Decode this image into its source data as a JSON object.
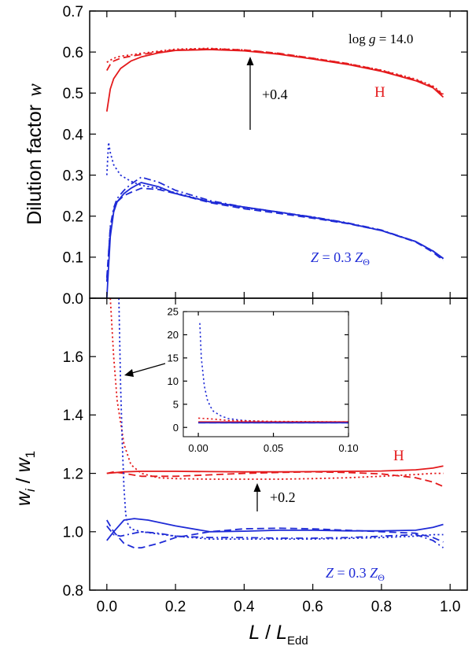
{
  "colors": {
    "red": "#e41a1c",
    "blue": "#1f2bd6",
    "axis": "#000000"
  },
  "chart_data": [
    {
      "type": "line",
      "panel": "top",
      "ylabel": "Dilution factor",
      "ylabel_symbol": "w",
      "xlabel": "",
      "xlim": [
        -0.05,
        1.05
      ],
      "ylim": [
        0.0,
        0.7
      ],
      "xticks": [
        "0.0",
        "0.2",
        "0.4",
        "0.6",
        "0.8",
        "1.0"
      ],
      "yticks": [
        "0.0",
        "0.1",
        "0.2",
        "0.3",
        "0.4",
        "0.5",
        "0.6",
        "0.7"
      ],
      "annotations": {
        "logg": {
          "prefix": "log",
          "symbol": "g",
          "text": "= 14.0"
        },
        "offset": "+0.4",
        "h_label": "H",
        "z_label": {
          "symbol": "Z",
          "text": "= 0.3",
          "sub_symbol": "Z",
          "sub": "Θ"
        }
      },
      "series": [
        {
          "name": "H solid",
          "color": "red",
          "style": "solid",
          "x": [
            0.0,
            0.01,
            0.02,
            0.04,
            0.07,
            0.1,
            0.15,
            0.2,
            0.3,
            0.4,
            0.5,
            0.6,
            0.7,
            0.8,
            0.9,
            0.95,
            0.98
          ],
          "y": [
            0.455,
            0.51,
            0.535,
            0.56,
            0.578,
            0.588,
            0.598,
            0.604,
            0.606,
            0.603,
            0.595,
            0.583,
            0.57,
            0.553,
            0.53,
            0.513,
            0.49
          ]
        },
        {
          "name": "H dashed",
          "color": "red",
          "style": "dashed",
          "x": [
            0.0,
            0.01,
            0.02,
            0.04,
            0.07,
            0.1,
            0.15,
            0.2,
            0.3,
            0.4,
            0.5,
            0.6,
            0.7,
            0.8,
            0.9,
            0.95,
            0.98
          ],
          "y": [
            0.555,
            0.57,
            0.578,
            0.585,
            0.59,
            0.594,
            0.6,
            0.605,
            0.608,
            0.605,
            0.597,
            0.585,
            0.572,
            0.555,
            0.532,
            0.515,
            0.495
          ]
        },
        {
          "name": "H dotted",
          "color": "red",
          "style": "dotted",
          "x": [
            0.0,
            0.01,
            0.02,
            0.04,
            0.07,
            0.1,
            0.15,
            0.2,
            0.3,
            0.4,
            0.5,
            0.6,
            0.7,
            0.8,
            0.9,
            0.95,
            0.98
          ],
          "y": [
            0.575,
            0.58,
            0.585,
            0.59,
            0.593,
            0.597,
            0.602,
            0.607,
            0.609,
            0.605,
            0.596,
            0.585,
            0.572,
            0.556,
            0.534,
            0.517,
            0.497
          ]
        },
        {
          "name": "Z solid",
          "color": "blue",
          "style": "solid",
          "x": [
            0.0,
            0.01,
            0.02,
            0.03,
            0.05,
            0.07,
            0.1,
            0.15,
            0.2,
            0.3,
            0.4,
            0.5,
            0.6,
            0.7,
            0.8,
            0.9,
            0.95,
            0.98
          ],
          "y": [
            0.0,
            0.15,
            0.21,
            0.235,
            0.255,
            0.268,
            0.282,
            0.272,
            0.255,
            0.235,
            0.222,
            0.21,
            0.197,
            0.183,
            0.165,
            0.138,
            0.115,
            0.097
          ]
        },
        {
          "name": "Z dashed",
          "color": "blue",
          "style": "dashed",
          "x": [
            0.0,
            0.01,
            0.02,
            0.03,
            0.05,
            0.07,
            0.1,
            0.15,
            0.2,
            0.3,
            0.4,
            0.5,
            0.6,
            0.7,
            0.8,
            0.9,
            0.95,
            0.98
          ],
          "y": [
            0.05,
            0.17,
            0.215,
            0.235,
            0.25,
            0.258,
            0.268,
            0.265,
            0.255,
            0.233,
            0.218,
            0.207,
            0.195,
            0.182,
            0.165,
            0.137,
            0.112,
            0.092
          ]
        },
        {
          "name": "Z dash-dot",
          "color": "blue",
          "style": "dashdot",
          "x": [
            0.0,
            0.01,
            0.02,
            0.03,
            0.05,
            0.07,
            0.1,
            0.15,
            0.2,
            0.3,
            0.4,
            0.5,
            0.6,
            0.7,
            0.8,
            0.9,
            0.95,
            0.98
          ],
          "y": [
            0.04,
            0.175,
            0.22,
            0.243,
            0.263,
            0.278,
            0.295,
            0.283,
            0.263,
            0.238,
            0.222,
            0.21,
            0.198,
            0.184,
            0.166,
            0.138,
            0.115,
            0.095
          ]
        },
        {
          "name": "Z dotted",
          "color": "blue",
          "style": "dotted",
          "x": [
            0.0,
            0.005,
            0.01,
            0.02,
            0.04,
            0.07,
            0.1,
            0.15,
            0.2,
            0.3,
            0.4,
            0.5,
            0.6,
            0.7,
            0.8,
            0.9,
            0.95,
            0.98
          ],
          "y": [
            0.3,
            0.38,
            0.355,
            0.325,
            0.3,
            0.285,
            0.275,
            0.268,
            0.257,
            0.235,
            0.22,
            0.21,
            0.198,
            0.183,
            0.165,
            0.138,
            0.115,
            0.096
          ]
        }
      ]
    },
    {
      "type": "line",
      "panel": "bottom",
      "ylabel": "w_i / w_1",
      "ylabel_parts": {
        "num": "w",
        "num_sub": "i",
        "sep": " / ",
        "den": "w",
        "den_sub": "1"
      },
      "xlabel": "L / L_Edd",
      "xlabel_parts": {
        "num": "L",
        "sep": " / ",
        "den": "L",
        "den_sub": "Edd"
      },
      "xlim": [
        -0.05,
        1.05
      ],
      "ylim": [
        0.8,
        1.8
      ],
      "xticks": [
        "0.0",
        "0.2",
        "0.4",
        "0.6",
        "0.8",
        "1.0"
      ],
      "yticks": [
        "0.8",
        "1.0",
        "1.2",
        "1.4",
        "1.6"
      ],
      "annotations": {
        "offset": "+0.2",
        "h_label": "H",
        "z_label": {
          "symbol": "Z",
          "text": "= 0.3",
          "sub_symbol": "Z",
          "sub": "Θ"
        }
      },
      "series": [
        {
          "name": "H solid",
          "color": "red",
          "style": "solid",
          "x": [
            0.0,
            0.05,
            0.1,
            0.2,
            0.3,
            0.4,
            0.5,
            0.6,
            0.7,
            0.8,
            0.9,
            0.95,
            0.98
          ],
          "y": [
            1.2,
            1.205,
            1.207,
            1.207,
            1.206,
            1.205,
            1.205,
            1.206,
            1.207,
            1.208,
            1.212,
            1.218,
            1.225
          ]
        },
        {
          "name": "H dashed",
          "color": "red",
          "style": "dashed",
          "x": [
            0.0,
            0.02,
            0.05,
            0.1,
            0.2,
            0.3,
            0.4,
            0.5,
            0.6,
            0.7,
            0.8,
            0.9,
            0.95,
            0.98
          ],
          "y": [
            1.2,
            1.205,
            1.2,
            1.19,
            1.19,
            1.195,
            1.2,
            1.203,
            1.205,
            1.203,
            1.198,
            1.185,
            1.17,
            1.155
          ]
        },
        {
          "name": "H dotted",
          "color": "red",
          "style": "dotted",
          "x": [
            0.01,
            0.02,
            0.03,
            0.05,
            0.07,
            0.1,
            0.15,
            0.2,
            0.3,
            0.4,
            0.5,
            0.6,
            0.7,
            0.8,
            0.9,
            0.95,
            0.98
          ],
          "y": [
            1.8,
            1.6,
            1.45,
            1.3,
            1.23,
            1.2,
            1.185,
            1.182,
            1.18,
            1.18,
            1.18,
            1.182,
            1.185,
            1.19,
            1.196,
            1.2,
            1.2
          ]
        },
        {
          "name": "Z solid",
          "color": "blue",
          "style": "solid",
          "x": [
            0.0,
            0.02,
            0.05,
            0.08,
            0.12,
            0.2,
            0.3,
            0.4,
            0.5,
            0.6,
            0.7,
            0.8,
            0.9,
            0.95,
            0.98
          ],
          "y": [
            0.97,
            1.0,
            1.04,
            1.045,
            1.04,
            1.02,
            1.0,
            1.002,
            1.005,
            1.005,
            1.003,
            1.003,
            1.005,
            1.015,
            1.025
          ]
        },
        {
          "name": "Z dashed",
          "color": "blue",
          "style": "dashed",
          "x": [
            0.0,
            0.02,
            0.05,
            0.08,
            0.1,
            0.15,
            0.2,
            0.3,
            0.4,
            0.5,
            0.6,
            0.7,
            0.8,
            0.9,
            0.95,
            0.98
          ],
          "y": [
            1.04,
            1.0,
            0.96,
            0.945,
            0.945,
            0.96,
            0.98,
            1.0,
            1.01,
            1.012,
            1.01,
            1.005,
            1.0,
            0.995,
            0.98,
            0.965
          ]
        },
        {
          "name": "Z dash-dot",
          "color": "blue",
          "style": "dashdot",
          "x": [
            0.0,
            0.02,
            0.04,
            0.06,
            0.1,
            0.15,
            0.2,
            0.3,
            0.4,
            0.5,
            0.6,
            0.7,
            0.8,
            0.9,
            0.95,
            0.98
          ],
          "y": [
            1.02,
            0.99,
            0.985,
            0.99,
            1.0,
            0.995,
            0.985,
            0.98,
            0.98,
            0.978,
            0.978,
            0.98,
            0.985,
            0.99,
            0.97,
            0.945
          ]
        },
        {
          "name": "Z dotted",
          "color": "blue",
          "style": "dotted",
          "x": [
            0.035,
            0.04,
            0.045,
            0.05,
            0.055,
            0.06,
            0.07,
            0.1,
            0.2,
            0.3,
            0.4,
            0.5,
            0.6,
            0.7,
            0.8,
            0.9,
            0.95,
            0.98
          ],
          "y": [
            1.8,
            1.5,
            1.3,
            1.15,
            1.06,
            1.03,
            1.01,
            1.0,
            0.985,
            0.975,
            0.975,
            0.975,
            0.975,
            0.977,
            0.98,
            0.985,
            0.99,
            0.99
          ]
        }
      ]
    },
    {
      "type": "line",
      "panel": "inset",
      "xlim": [
        -0.01,
        0.1
      ],
      "ylim": [
        -2,
        25
      ],
      "xticks": [
        "0.00",
        "0.05",
        "0.10"
      ],
      "yticks": [
        "0",
        "5",
        "10",
        "15",
        "20",
        "25"
      ],
      "series": [
        {
          "name": "Z dotted",
          "color": "blue",
          "style": "dotted",
          "x": [
            0.001,
            0.002,
            0.004,
            0.006,
            0.008,
            0.01,
            0.015,
            0.02,
            0.03,
            0.05,
            0.1
          ],
          "y": [
            22.5,
            15,
            9,
            6,
            4.5,
            3.5,
            2.5,
            1.9,
            1.5,
            1.2,
            1.0
          ]
        },
        {
          "name": "H dotted",
          "color": "red",
          "style": "dotted",
          "x": [
            0.0,
            0.01,
            0.02,
            0.05,
            0.1
          ],
          "y": [
            2.0,
            1.8,
            1.5,
            1.3,
            1.2
          ]
        },
        {
          "name": "H solid",
          "color": "red",
          "style": "solid",
          "x": [
            0.0,
            0.1
          ],
          "y": [
            1.2,
            1.2
          ]
        },
        {
          "name": "Z solid",
          "color": "blue",
          "style": "solid",
          "x": [
            0.0,
            0.1
          ],
          "y": [
            1.0,
            1.0
          ]
        },
        {
          "name": "Z dashed",
          "color": "blue",
          "style": "dashed",
          "x": [
            0.0,
            0.1
          ],
          "y": [
            1.0,
            1.0
          ]
        }
      ]
    }
  ]
}
